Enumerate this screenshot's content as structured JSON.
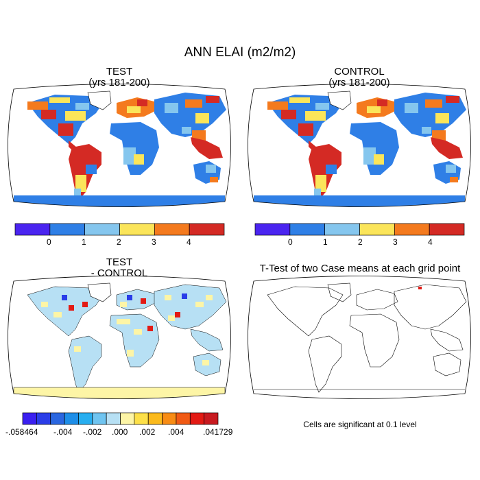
{
  "title": "ANN ELAI (m2/m2)",
  "panels": {
    "test": {
      "title": "TEST",
      "subtitle": "(yrs 181-200)"
    },
    "control": {
      "title": "CONTROL",
      "subtitle": "(yrs 181-200)"
    },
    "diff": {
      "title": "TEST",
      "subtitle": "- CONTROL"
    },
    "ttest": {
      "title": "T-Test of two Case means at each grid point",
      "note": "Cells are significant at 0.1 level"
    }
  },
  "colorbar_main": {
    "colors": [
      "#4a24f0",
      "#2f7fe6",
      "#85c6ee",
      "#fbe55a",
      "#f47a1e",
      "#d42a24"
    ],
    "labels": [
      "0",
      "1",
      "2",
      "3",
      "4"
    ]
  },
  "colorbar_diff": {
    "colors": [
      "#3a1ff0",
      "#2a3de8",
      "#2a66e0",
      "#1d8ee8",
      "#27aef0",
      "#6fc4f0",
      "#b7e0f4",
      "#fdf5a6",
      "#fde048",
      "#fbba1c",
      "#f88c14",
      "#f15a14",
      "#e31a14",
      "#c81a20"
    ],
    "labels": [
      "-.058464",
      "-.004",
      "-.002",
      ".000",
      ".002",
      ".004",
      ".041729"
    ]
  }
}
